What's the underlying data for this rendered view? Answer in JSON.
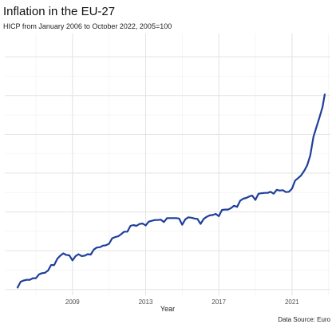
{
  "chart_data": {
    "type": "line",
    "title": "Inflation in the EU-27",
    "subtitle": "HICP from January 2006 to October 2022, 2005=100",
    "xlabel": "Year",
    "ylabel": "",
    "caption": "Data Source: Euro",
    "x_ticks": [
      "2009",
      "2013",
      "2017",
      "2021"
    ],
    "x_tick_positions": [
      2009,
      2013,
      2017,
      2021
    ],
    "xlim": [
      2005.3,
      2023.1
    ],
    "ylim": [
      98.5,
      166
    ],
    "y_ticks": [
      100,
      110,
      120,
      130,
      140,
      150,
      160
    ],
    "grid": true,
    "legend": "none",
    "color": "#1f3f9a",
    "series": [
      {
        "x": [
          2006.0,
          2006.17,
          2006.33,
          2006.5,
          2006.67,
          2006.83,
          2007.0,
          2007.17,
          2007.33,
          2007.5,
          2007.67,
          2007.83,
          2008.0,
          2008.17,
          2008.33,
          2008.5,
          2008.67,
          2008.83,
          2009.0,
          2009.17,
          2009.33,
          2009.5,
          2009.67,
          2009.83,
          2010.0,
          2010.17,
          2010.33,
          2010.5,
          2010.67,
          2010.83,
          2011.0,
          2011.17,
          2011.33,
          2011.5,
          2011.67,
          2011.83,
          2012.0,
          2012.17,
          2012.33,
          2012.5,
          2012.67,
          2012.83,
          2013.0,
          2013.17,
          2013.33,
          2013.5,
          2013.67,
          2013.83,
          2014.0,
          2014.17,
          2014.33,
          2014.5,
          2014.67,
          2014.83,
          2015.0,
          2015.17,
          2015.33,
          2015.5,
          2015.67,
          2015.83,
          2016.0,
          2016.17,
          2016.33,
          2016.5,
          2016.67,
          2016.83,
          2017.0,
          2017.17,
          2017.33,
          2017.5,
          2017.67,
          2017.83,
          2018.0,
          2018.17,
          2018.33,
          2018.5,
          2018.67,
          2018.83,
          2019.0,
          2019.17,
          2019.33,
          2019.5,
          2019.67,
          2019.83,
          2020.0,
          2020.17,
          2020.33,
          2020.5,
          2020.67,
          2020.83,
          2021.0,
          2021.17,
          2021.33,
          2021.5,
          2021.67,
          2021.83,
          2022.0,
          2022.17,
          2022.33,
          2022.5,
          2022.67,
          2022.79
        ],
        "values": [
          100.5,
          102.0,
          102.3,
          102.5,
          102.5,
          102.9,
          102.9,
          103.9,
          104.2,
          104.3,
          104.9,
          106.3,
          106.3,
          107.9,
          108.7,
          109.3,
          108.9,
          108.8,
          107.5,
          108.6,
          109.1,
          108.6,
          108.7,
          109.1,
          109.0,
          110.3,
          110.8,
          110.9,
          111.3,
          111.4,
          111.8,
          113.2,
          113.5,
          113.7,
          114.3,
          114.9,
          114.9,
          116.4,
          116.6,
          116.4,
          116.9,
          117.0,
          116.5,
          117.5,
          117.7,
          117.9,
          117.9,
          118.0,
          117.4,
          118.4,
          118.4,
          118.4,
          118.4,
          118.3,
          116.7,
          118.1,
          118.6,
          118.5,
          118.3,
          118.2,
          116.9,
          118.2,
          118.7,
          119.1,
          119.2,
          119.5,
          118.9,
          120.5,
          120.6,
          120.6,
          121.0,
          121.6,
          121.3,
          122.9,
          123.4,
          123.6,
          124.0,
          124.2,
          123.1,
          124.7,
          124.8,
          124.9,
          124.9,
          125.2,
          124.7,
          125.7,
          125.5,
          125.6,
          125.1,
          125.2,
          126.0,
          128.1,
          128.7,
          129.4,
          130.6,
          132.0,
          134.6,
          139.3,
          141.8,
          144.3,
          147.0,
          150.3
        ]
      }
    ]
  }
}
